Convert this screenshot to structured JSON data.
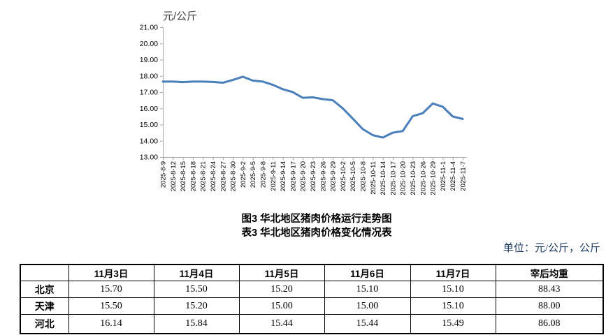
{
  "titles": {
    "figure": "图3  华北地区猪肉价格运行走势图",
    "table": "表3  华北地区猪肉价格变化情况表"
  },
  "unit_note": "单位：元/公斤，公斤",
  "chart_data": {
    "type": "line",
    "title": "图3 华北地区猪肉价格运行走势图",
    "ylabel": "元/公斤",
    "xlabel": "",
    "ylim": [
      13.0,
      21.0
    ],
    "ytick_step": 1.0,
    "ytick_labels": [
      "21.00",
      "20.00",
      "19.00",
      "18.00",
      "17.00",
      "16.00",
      "15.00",
      "14.00",
      "13.00"
    ],
    "grid": false,
    "legend_position": "none",
    "line_color": "#4a7ebb",
    "axis_color": "#a6a6a6",
    "x": [
      "2025-8-9",
      "2025-8-12",
      "2025-8-15",
      "2025-8-18",
      "2025-8-21",
      "2025-8-24",
      "2025-8-27",
      "2025-8-30",
      "2025-9-2",
      "2025-9-5",
      "2025-9-8",
      "2025-9-11",
      "2025-9-14",
      "2025-9-17",
      "2025-9-20",
      "2025-9-23",
      "2025-9-26",
      "2025-9-29",
      "2025-10-2",
      "2025-10-5",
      "2025-10-8",
      "2025-10-11",
      "2025-10-14",
      "2025-10-17",
      "2025-10-20",
      "2025-10-23",
      "2025-10-26",
      "2025-10-29",
      "2025-11-1",
      "2025-11-4",
      "2025-11-7"
    ],
    "series": [
      {
        "name": "华北地区猪肉价格",
        "values": [
          17.65,
          17.65,
          17.62,
          17.65,
          17.65,
          17.63,
          17.58,
          17.75,
          17.95,
          17.71,
          17.65,
          17.45,
          17.18,
          17.0,
          16.65,
          16.68,
          16.57,
          16.5,
          16.0,
          15.37,
          14.72,
          14.35,
          14.2,
          14.5,
          14.6,
          15.52,
          15.7,
          16.3,
          16.1,
          15.5,
          15.35
        ]
      }
    ]
  },
  "table": {
    "headers": [
      "",
      "11月3日",
      "11月4日",
      "11月5日",
      "11月6日",
      "11月7日",
      "宰后均重"
    ],
    "rows": [
      {
        "region": "北京",
        "values": [
          "15.70",
          "15.50",
          "15.20",
          "15.10",
          "15.10",
          "88.43"
        ]
      },
      {
        "region": "天津",
        "values": [
          "15.50",
          "15.20",
          "15.00",
          "15.00",
          "15.10",
          "88.00"
        ]
      },
      {
        "region": "河北",
        "values": [
          "16.14",
          "15.84",
          "15.44",
          "15.44",
          "15.49",
          "86.08"
        ]
      }
    ]
  }
}
